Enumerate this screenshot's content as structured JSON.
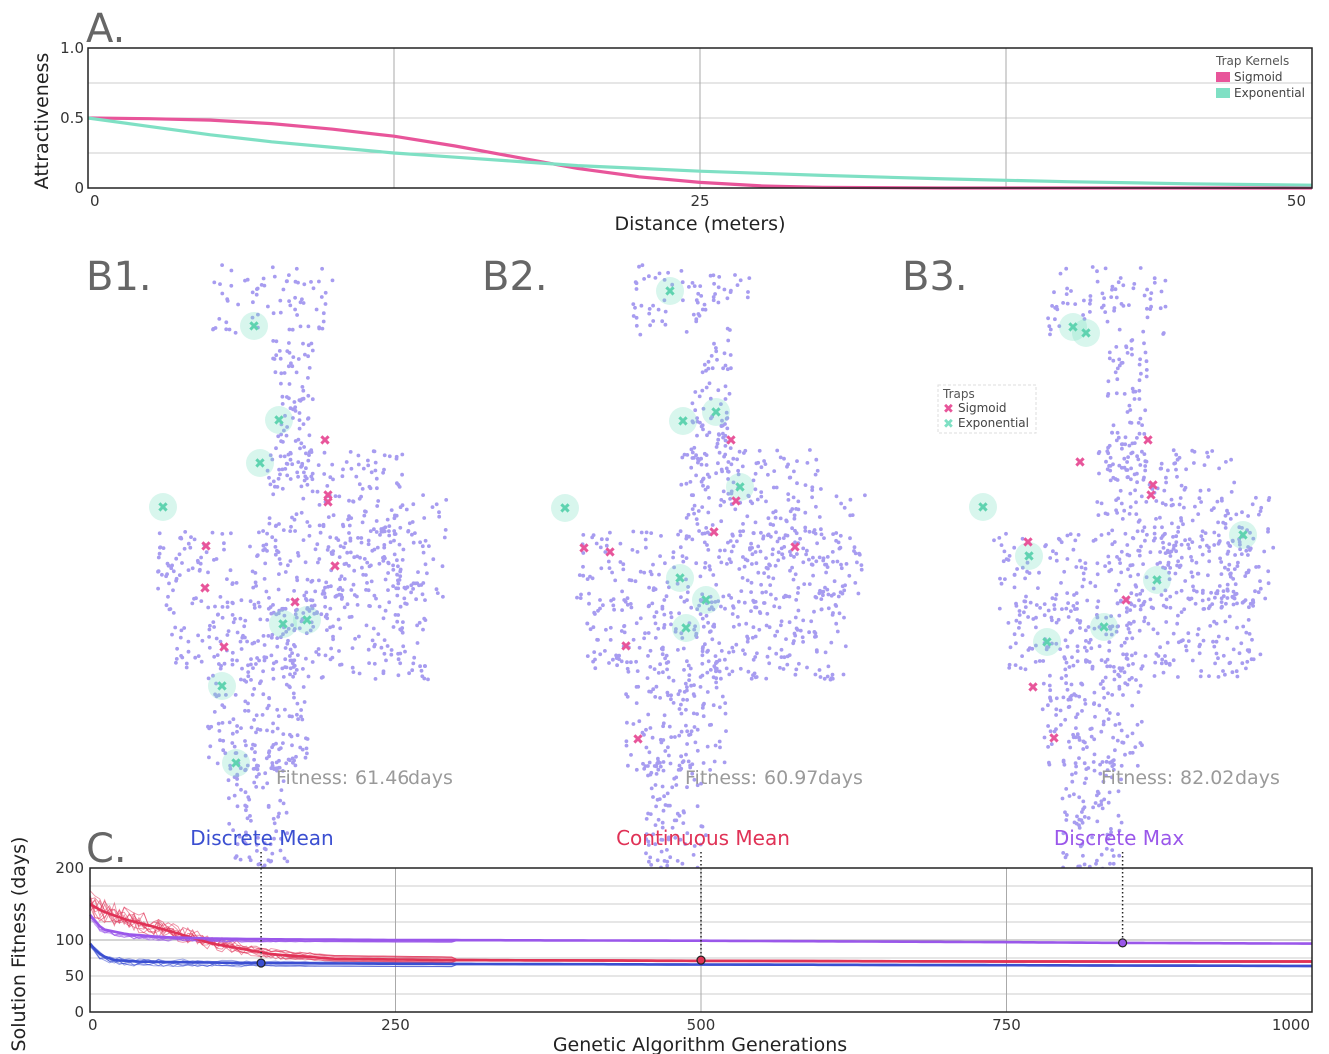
{
  "chart_data": [
    {
      "panel": "A.",
      "type": "line",
      "xlabel": "Distance (meters)",
      "ylabel": "Attractiveness",
      "xlim": [
        0,
        50
      ],
      "ylim": [
        0,
        1
      ],
      "x_ticks": [
        "0",
        "25",
        "50"
      ],
      "y_ticks": [
        "0",
        "0.5",
        "1.0"
      ],
      "grid": true,
      "legend": {
        "title": "Trap Kernels",
        "position": "top-right"
      },
      "series": [
        {
          "name": "Sigmoid",
          "color": "#e8559a",
          "x": [
            0,
            2.5,
            5,
            7.5,
            10,
            12.5,
            15,
            17.5,
            20,
            22.5,
            25,
            27.5,
            30,
            35,
            40,
            45,
            50
          ],
          "y": [
            0.5,
            0.495,
            0.485,
            0.46,
            0.42,
            0.37,
            0.3,
            0.22,
            0.14,
            0.08,
            0.04,
            0.015,
            0.005,
            0.0,
            0.0,
            0.0,
            0.0
          ]
        },
        {
          "name": "Exponential",
          "color": "#7fe0c4",
          "x": [
            0,
            2.5,
            5,
            7.5,
            10,
            12.5,
            15,
            17.5,
            20,
            22.5,
            25,
            27.5,
            30,
            35,
            40,
            45,
            50
          ],
          "y": [
            0.5,
            0.44,
            0.38,
            0.33,
            0.29,
            0.25,
            0.22,
            0.19,
            0.16,
            0.14,
            0.12,
            0.105,
            0.09,
            0.065,
            0.045,
            0.03,
            0.02
          ]
        }
      ]
    },
    {
      "panel": "B1.",
      "type": "scatter",
      "fitness_label": "Fitness:",
      "fitness_value": "61.46",
      "fitness_unit": "days",
      "traps": {
        "sigmoid": [
          [
            206,
            546
          ],
          [
            205,
            588
          ],
          [
            224,
            647
          ],
          [
            295,
            602
          ],
          [
            325,
            440
          ],
          [
            328,
            495
          ],
          [
            328,
            502
          ],
          [
            335,
            566
          ]
        ],
        "exponential": [
          [
            254,
            326
          ],
          [
            279,
            420
          ],
          [
            260,
            463
          ],
          [
            163,
            507
          ],
          [
            283,
            624
          ],
          [
            307,
            620
          ],
          [
            222,
            686
          ],
          [
            236,
            763
          ]
        ]
      }
    },
    {
      "panel": "B2.",
      "type": "scatter",
      "legend": {
        "title": "Traps",
        "items": [
          "Sigmoid",
          "Exponential"
        ],
        "colors": [
          "#e8559a",
          "#7fe0c4"
        ]
      },
      "fitness_label": "Fitness:",
      "fitness_value": "60.97",
      "fitness_unit": "days",
      "traps": {
        "sigmoid": [
          [
            731,
            440
          ],
          [
            736,
            501
          ],
          [
            714,
            532
          ],
          [
            584,
            548
          ],
          [
            610,
            552
          ],
          [
            795,
            547
          ],
          [
            626,
            646
          ],
          [
            638,
            739
          ]
        ],
        "exponential": [
          [
            670,
            291
          ],
          [
            683,
            421
          ],
          [
            716,
            412
          ],
          [
            740,
            487
          ],
          [
            565,
            508
          ],
          [
            680,
            578
          ],
          [
            706,
            600
          ],
          [
            686,
            628
          ]
        ]
      }
    },
    {
      "panel": "B3.",
      "type": "scatter",
      "fitness_label": "Fitness:",
      "fitness_value": "82.02",
      "fitness_unit": "days",
      "traps": {
        "sigmoid": [
          [
            1148,
            440
          ],
          [
            1080,
            462
          ],
          [
            1153,
            485
          ],
          [
            1151,
            495
          ],
          [
            1028,
            542
          ],
          [
            1126,
            600
          ],
          [
            1033,
            687
          ],
          [
            1054,
            738
          ]
        ],
        "exponential": [
          [
            1073,
            327
          ],
          [
            1086,
            333
          ],
          [
            983,
            507
          ],
          [
            1243,
            535
          ],
          [
            1029,
            556
          ],
          [
            1157,
            580
          ],
          [
            1104,
            627
          ],
          [
            1047,
            642
          ]
        ]
      }
    },
    {
      "panel": "C.",
      "type": "line",
      "xlabel": "Genetic Algorithm Generations",
      "ylabel": "Solution Fitness (days)",
      "xlim": [
        0,
        1000
      ],
      "ylim": [
        0,
        200
      ],
      "x_ticks": [
        "0",
        "250",
        "500",
        "750",
        "1000"
      ],
      "y_ticks": [
        "0",
        "50",
        "100",
        "200"
      ],
      "grid": true,
      "annotations": [
        {
          "label": "Discrete Mean",
          "color": "#3b4fd1",
          "x": 140,
          "y": 68
        },
        {
          "label": "Continuous Mean",
          "color": "#e03256",
          "x": 500,
          "y": 72
        },
        {
          "label": "Discrete Max",
          "color": "#9a57ea",
          "x": 845,
          "y": 96
        }
      ],
      "series": [
        {
          "name": "Discrete Mean",
          "color": "#3b4fd1",
          "x": [
            0,
            5,
            10,
            20,
            40,
            80,
            140,
            250,
            500,
            750,
            1000
          ],
          "y": [
            95,
            85,
            78,
            72,
            70,
            69,
            68,
            67,
            66,
            65,
            64
          ]
        },
        {
          "name": "Continuous Mean",
          "color": "#e03256",
          "x": [
            0,
            10,
            30,
            60,
            100,
            150,
            200,
            300,
            500,
            750,
            1000
          ],
          "y": [
            150,
            140,
            128,
            115,
            95,
            80,
            74,
            72,
            71,
            70,
            70
          ]
        },
        {
          "name": "Discrete Max",
          "color": "#9a57ea",
          "x": [
            0,
            10,
            30,
            60,
            100,
            150,
            250,
            500,
            750,
            845,
            1000
          ],
          "y": [
            135,
            115,
            108,
            104,
            102,
            101,
            100,
            99,
            97,
            96,
            95
          ]
        }
      ]
    }
  ]
}
